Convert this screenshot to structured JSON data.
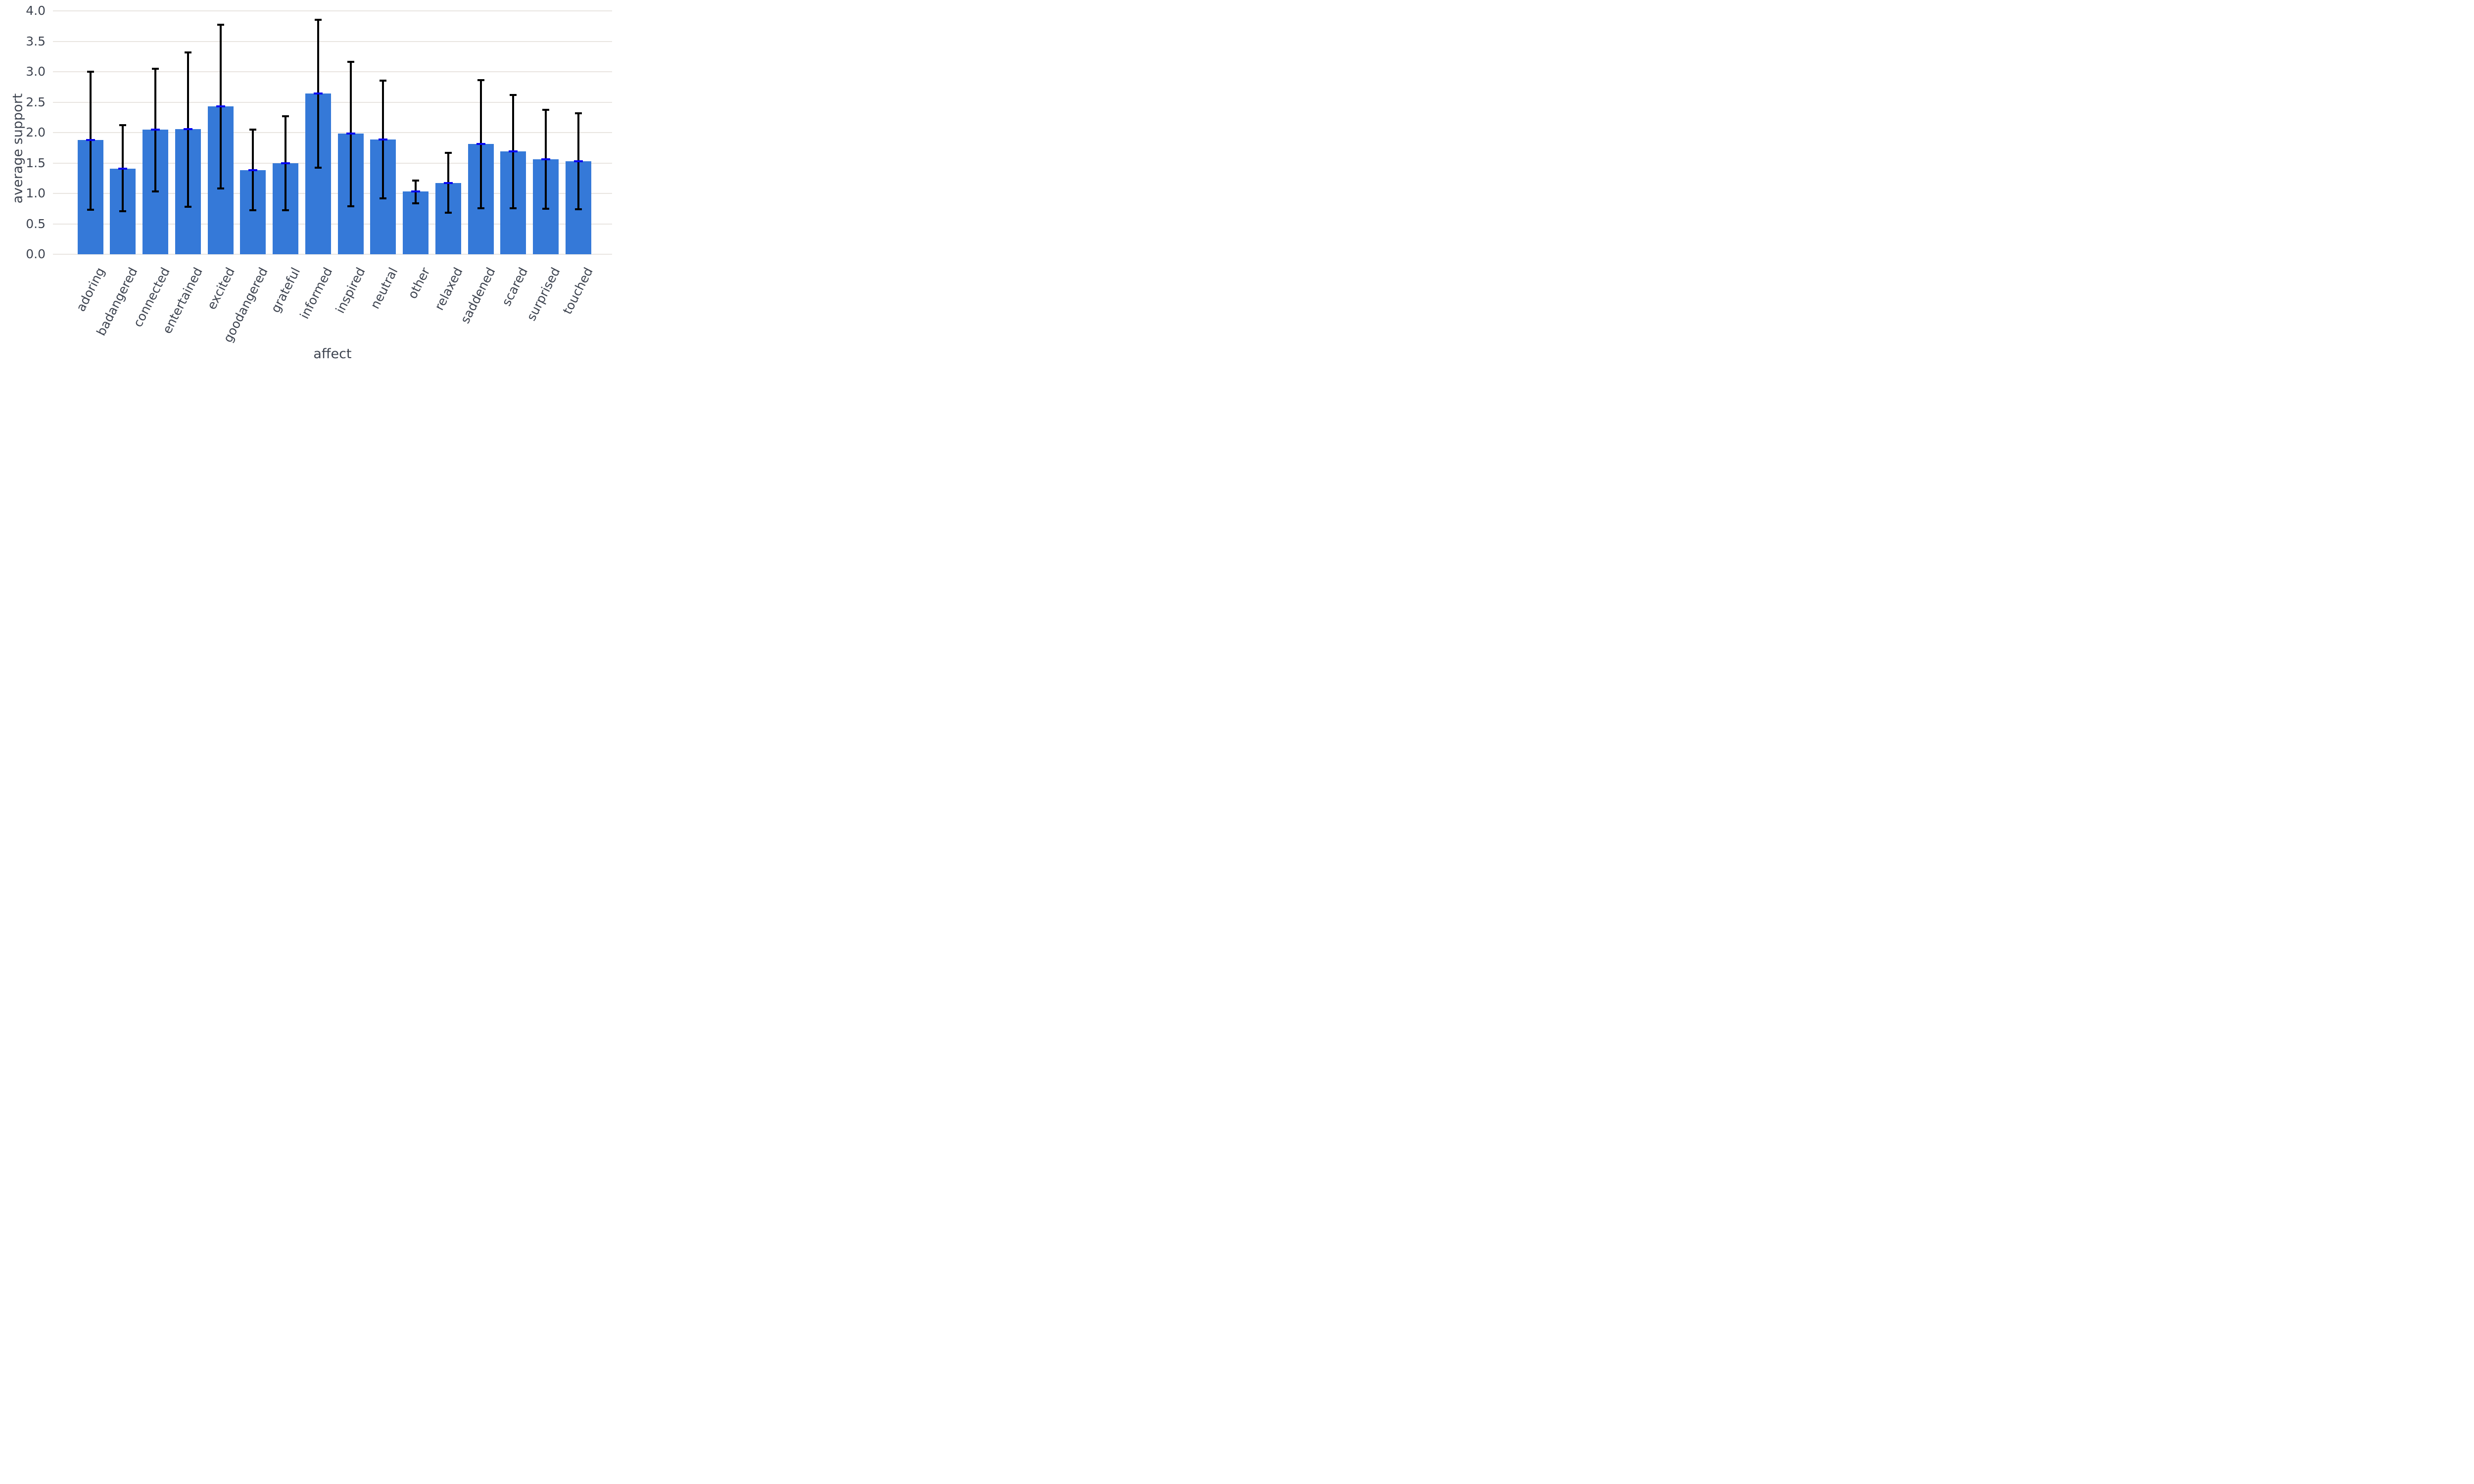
{
  "figure": {
    "background": "#ffffff",
    "bar_color": "#3579D8",
    "mean_cap_color": "#0505F1",
    "error_color": "#000000",
    "gridline_color": "#E9E5E1",
    "text_color": "#3E4450"
  },
  "chart_data": {
    "type": "bar",
    "title": "",
    "xlabel": "affect",
    "ylabel": "average support",
    "ylim": [
      0.0,
      4.0
    ],
    "grid": "horizontal-only",
    "legend_position": "none",
    "yticks": [
      "0.0",
      "0.5",
      "1.0",
      "1.5",
      "2.0",
      "2.5",
      "3.0",
      "3.5",
      "4.0"
    ],
    "categories": [
      "adoring",
      "badangered",
      "connected",
      "entertained",
      "excited",
      "goodangered",
      "grateful",
      "informed",
      "inspired",
      "neutral",
      "other",
      "relaxed",
      "saddened",
      "scared",
      "surprised",
      "touched"
    ],
    "values": [
      1.88,
      1.41,
      2.05,
      2.06,
      2.43,
      1.38,
      1.5,
      2.64,
      1.98,
      1.89,
      1.03,
      1.17,
      1.81,
      1.69,
      1.56,
      1.53
    ],
    "error_low": [
      0.73,
      0.71,
      1.03,
      0.78,
      1.08,
      0.72,
      0.72,
      1.42,
      0.79,
      0.92,
      0.84,
      0.68,
      0.76,
      0.76,
      0.75,
      0.74
    ],
    "error_high": [
      3.0,
      2.12,
      3.05,
      3.32,
      3.77,
      2.05,
      2.27,
      3.85,
      3.16,
      2.85,
      1.21,
      1.67,
      2.86,
      2.62,
      2.37,
      2.32
    ]
  }
}
